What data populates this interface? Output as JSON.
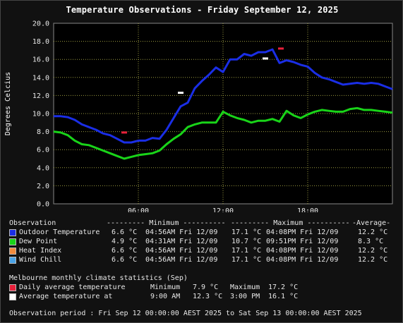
{
  "title": "Temperature Observations - Friday September 12, 2025",
  "chart_data": {
    "type": "line",
    "ylabel": "Degrees Celcius",
    "ylim": [
      0,
      20
    ],
    "yticks": [
      "0.0",
      "2.0",
      "4.0",
      "6.0",
      "8.0",
      "10.0",
      "12.0",
      "14.0",
      "16.0",
      "18.0",
      "20.0"
    ],
    "xlim": [
      0,
      24
    ],
    "xticks": [
      {
        "x": 6,
        "label": "06:00"
      },
      {
        "x": 12,
        "label": "12:00"
      },
      {
        "x": 18,
        "label": "18:00"
      }
    ],
    "grid": true,
    "series": [
      {
        "name": "Outdoor Temperature",
        "color": "#1a2ee6",
        "x": [
          0,
          0.5,
          1,
          1.5,
          2,
          2.5,
          3,
          3.5,
          4,
          4.5,
          5,
          5.5,
          6,
          6.5,
          7,
          7.5,
          8,
          8.5,
          9,
          9.5,
          10,
          10.5,
          11,
          11.5,
          12,
          12.5,
          13,
          13.5,
          14,
          14.5,
          15,
          15.5,
          16,
          16.5,
          17,
          17.5,
          18,
          18.5,
          19,
          19.5,
          20,
          20.5,
          21,
          21.5,
          22,
          22.5,
          23,
          23.5,
          24
        ],
        "y": [
          9.7,
          9.7,
          9.6,
          9.3,
          8.8,
          8.5,
          8.2,
          7.8,
          7.6,
          7.2,
          6.8,
          6.8,
          7.0,
          7.0,
          7.3,
          7.2,
          8.2,
          9.5,
          10.8,
          11.2,
          12.8,
          13.6,
          14.3,
          15.1,
          14.6,
          16.0,
          16.0,
          16.6,
          16.4,
          16.8,
          16.8,
          17.1,
          15.6,
          15.9,
          15.7,
          15.4,
          15.2,
          14.5,
          14.0,
          13.8,
          13.5,
          13.2,
          13.3,
          13.4,
          13.3,
          13.4,
          13.3,
          13.0,
          12.7
        ]
      },
      {
        "name": "Dew Point",
        "color": "#19d419",
        "x": [
          0,
          0.5,
          1,
          1.5,
          2,
          2.5,
          3,
          3.5,
          4,
          4.5,
          5,
          5.5,
          6,
          6.5,
          7,
          7.5,
          8,
          8.5,
          9,
          9.5,
          10,
          10.5,
          11,
          11.5,
          12,
          12.5,
          13,
          13.5,
          14,
          14.5,
          15,
          15.5,
          16,
          16.5,
          17,
          17.5,
          18,
          18.5,
          19,
          19.5,
          20,
          20.5,
          21,
          21.5,
          22,
          22.5,
          23,
          23.5,
          24
        ],
        "y": [
          8.0,
          7.9,
          7.6,
          7.0,
          6.6,
          6.5,
          6.2,
          5.9,
          5.6,
          5.3,
          5.0,
          5.2,
          5.4,
          5.5,
          5.6,
          5.9,
          6.6,
          7.2,
          7.7,
          8.5,
          8.8,
          9.0,
          9.0,
          9.0,
          10.2,
          9.8,
          9.5,
          9.3,
          9.0,
          9.2,
          9.2,
          9.4,
          9.1,
          10.3,
          9.8,
          9.5,
          9.9,
          10.2,
          10.4,
          10.3,
          10.2,
          10.2,
          10.5,
          10.6,
          10.4,
          10.4,
          10.3,
          10.2,
          10.1
        ]
      }
    ],
    "markers": [
      {
        "name": "Daily average temperature minimum",
        "x": 5,
        "y": 7.9,
        "color": "#e8203a"
      },
      {
        "name": "Daily average temperature maximum",
        "x": 16.1,
        "y": 17.2,
        "color": "#e8203a"
      },
      {
        "name": "Average temperature at 9:00 AM",
        "x": 9,
        "y": 12.3,
        "color": "#ffffff"
      },
      {
        "name": "Average temperature at 3:00 PM",
        "x": 15,
        "y": 16.1,
        "color": "#ffffff"
      }
    ]
  },
  "table": {
    "header": {
      "col0": "Observation",
      "col1": "--------- Minimum ----------",
      "col2": "--------- Maximum ----------",
      "col3": "-Average-"
    },
    "rows": [
      {
        "label": "Outdoor Temperature",
        "color": "#1a2ee6",
        "min": "6.6 °C",
        "min_time": "04:56AM Fri 12/09",
        "max": "17.1 °C",
        "max_time": "04:08PM Fri 12/09",
        "avg": "12.2 °C"
      },
      {
        "label": "Dew Point",
        "color": "#19d419",
        "min": "4.9 °C",
        "min_time": "04:31AM Fri 12/09",
        "max": "10.7 °C",
        "max_time": "09:51PM Fri 12/09",
        "avg": "8.3 °C"
      },
      {
        "label": "Heat Index",
        "color": "#f08a3c",
        "min": "6.6 °C",
        "min_time": "04:56AM Fri 12/09",
        "max": "17.1 °C",
        "max_time": "04:08PM Fri 12/09",
        "avg": "12.2 °C"
      },
      {
        "label": "Wind Chill",
        "color": "#4aa3e6",
        "min": "6.6 °C",
        "min_time": "04:56AM Fri 12/09",
        "max": "17.1 °C",
        "max_time": "04:08PM Fri 12/09",
        "avg": "12.2 °C"
      }
    ]
  },
  "climate": {
    "heading": "Melbourne monthly climate statistics (Sep)",
    "rows": [
      {
        "label": "Daily average temperature",
        "color": "#e8203a",
        "c1": "Minimum",
        "v1": "7.9 °C",
        "c2": "Maximum",
        "v2": "17.2 °C"
      },
      {
        "label": "Average temperature at",
        "color": "#ffffff",
        "c1": "9:00 AM",
        "v1": "12.3 °C",
        "c2": "3:00 PM",
        "v2": "16.1 °C"
      }
    ]
  },
  "period": "Observation period : Fri Sep 12 00:00:00 AEST 2025 to Sat Sep 13 00:00:00 AEST 2025"
}
